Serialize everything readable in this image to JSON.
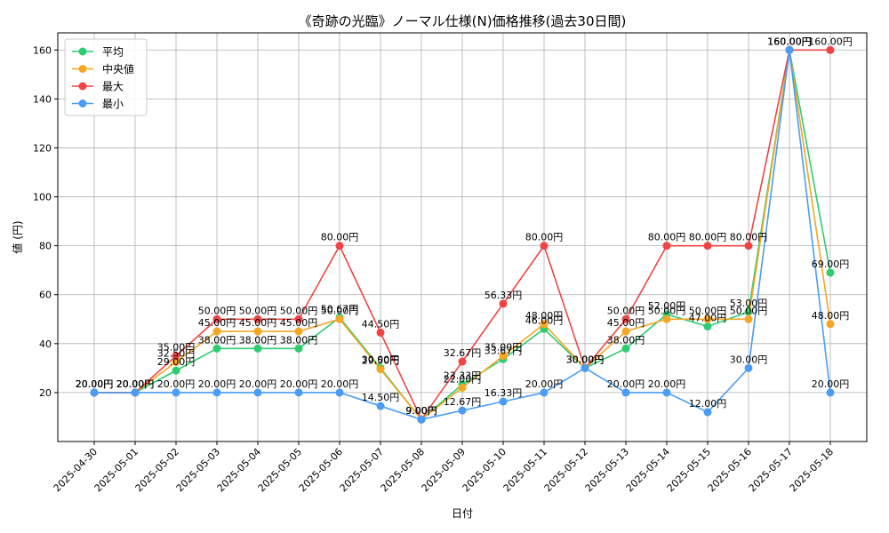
{
  "chart_data": {
    "type": "line",
    "title": "《奇跡の光臨》ノーマル仕様(N)価格推移(過去30日間)",
    "xlabel": "日付",
    "ylabel": "値 (円)",
    "ylim": [
      0,
      167
    ],
    "yticks": [
      20,
      40,
      60,
      80,
      100,
      120,
      140,
      160
    ],
    "grid": true,
    "legend_position": "top-left",
    "categories": [
      "2025-04-30",
      "2025-05-01",
      "2025-05-02",
      "2025-05-03",
      "2025-05-04",
      "2025-05-05",
      "2025-05-06",
      "2025-05-07",
      "2025-05-08",
      "2025-05-09",
      "2025-05-10",
      "2025-05-11",
      "2025-05-12",
      "2025-05-13",
      "2025-05-14",
      "2025-05-15",
      "2025-05-16",
      "2025-05-17",
      "2025-05-18"
    ],
    "series": [
      {
        "name": "平均",
        "color": "#2ecc71",
        "values": [
          20,
          20,
          29,
          38,
          38,
          38,
          50.67,
          30,
          9,
          23.33,
          33.67,
          46,
          30,
          38,
          52,
          47,
          53,
          160,
          69
        ]
      },
      {
        "name": "中央値",
        "color": "#f5a623",
        "values": [
          20,
          20,
          32.5,
          45,
          45,
          45,
          50,
          29.5,
          9,
          22,
          35,
          48,
          30,
          45,
          50,
          50,
          50,
          160,
          48
        ]
      },
      {
        "name": "最大",
        "color": "#ef4444",
        "values": [
          20,
          20,
          35,
          50,
          50,
          50,
          80,
          44.5,
          9,
          32.67,
          56.33,
          80,
          30,
          50,
          80,
          80,
          80,
          160,
          160
        ]
      },
      {
        "name": "最小",
        "color": "#4a9cf5",
        "values": [
          20,
          20,
          20,
          20,
          20,
          20,
          20,
          14.5,
          9,
          12.67,
          16.33,
          20,
          30,
          20,
          20,
          12,
          30,
          160,
          20
        ]
      }
    ],
    "label_suffix": "円"
  }
}
